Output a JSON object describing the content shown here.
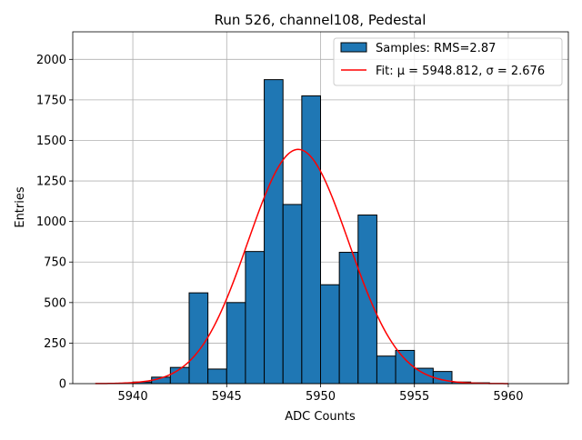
{
  "chart_data": {
    "type": "bar",
    "title": "Run 526, channel108, Pedestal",
    "xlabel": "ADC Counts",
    "ylabel": "Entries",
    "xlim": [
      5936.8,
      5963.2
    ],
    "ylim": [
      0,
      2170
    ],
    "xticks": [
      5940,
      5945,
      5950,
      5955,
      5960
    ],
    "yticks": [
      0,
      250,
      500,
      750,
      1000,
      1250,
      1500,
      1750,
      2000
    ],
    "grid": true,
    "legend_position": "top-right",
    "bin_width": 1,
    "bin_edges": [
      5940,
      5941,
      5942,
      5943,
      5944,
      5945,
      5946,
      5947,
      5948,
      5949,
      5950,
      5951,
      5952,
      5953,
      5954,
      5955,
      5956,
      5957,
      5958,
      5959,
      5960,
      5961,
      5962
    ],
    "series": [
      {
        "name": "Samples: RMS=2.87",
        "kind": "histogram",
        "color": "#1f77b4",
        "bins_start": [
          5940,
          5941,
          5942,
          5943,
          5944,
          5945,
          5946,
          5947,
          5948,
          5949,
          5950,
          5951,
          5952,
          5953,
          5954,
          5955,
          5956,
          5957,
          5958,
          5959,
          5960,
          5961
        ],
        "values": [
          10,
          40,
          100,
          560,
          90,
          500,
          815,
          1875,
          1105,
          1775,
          610,
          810,
          1040,
          170,
          205,
          95,
          75,
          10,
          5,
          0,
          0,
          0
        ]
      },
      {
        "name": "Fit: μ = 5948.812, σ = 2.676",
        "kind": "gaussian",
        "color": "#ff0000",
        "mu": 5948.812,
        "sigma": 2.676,
        "amplitude": 1445,
        "x_range": [
          5938,
          5960
        ]
      }
    ]
  }
}
